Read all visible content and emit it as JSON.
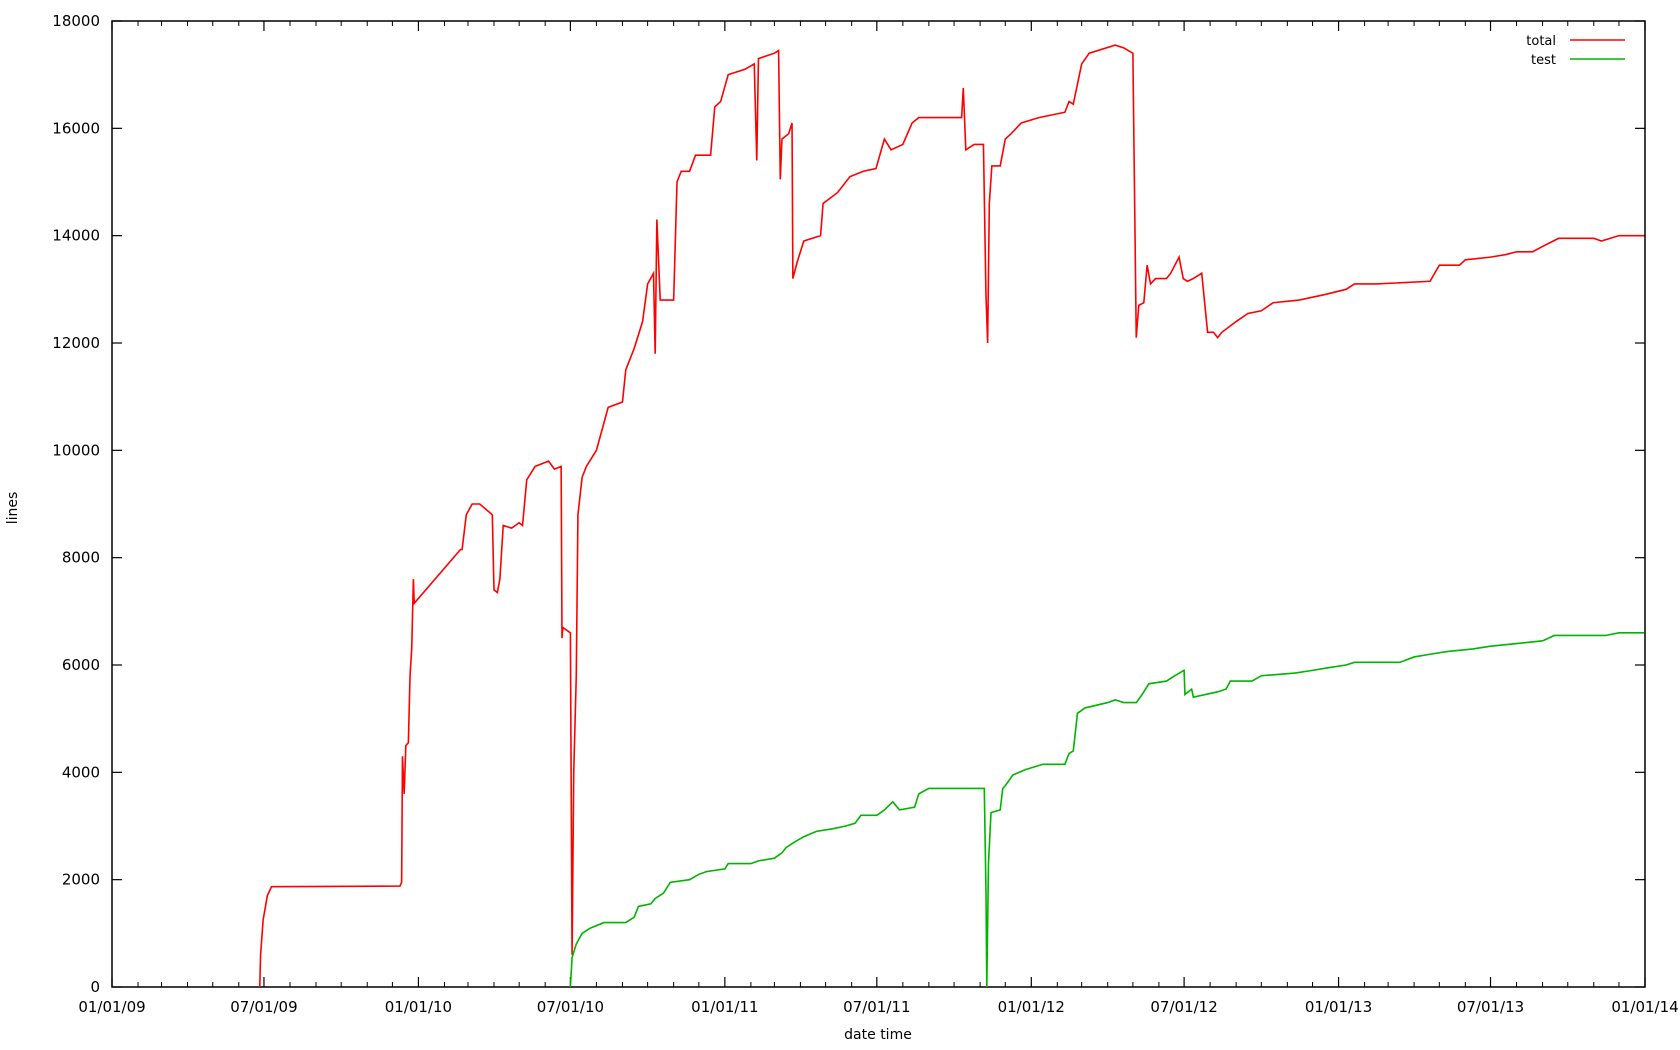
{
  "chart_data": {
    "type": "line",
    "title": "",
    "xlabel": "date time",
    "ylabel": "lines",
    "x_range": [
      "2009-01-01",
      "2014-01-01"
    ],
    "ylim": [
      0,
      18000
    ],
    "grid": false,
    "legend_position": "top-right",
    "x_ticks": [
      "2009-01-01",
      "2009-07-01",
      "2010-01-01",
      "2010-07-01",
      "2011-01-01",
      "2011-07-01",
      "2012-01-01",
      "2012-07-01",
      "2013-01-01",
      "2013-07-01",
      "2014-01-01"
    ],
    "x_tick_labels": [
      "01/01/09",
      "07/01/09",
      "01/01/10",
      "07/01/10",
      "01/01/11",
      "07/01/11",
      "01/01/12",
      "07/01/12",
      "01/01/13",
      "07/01/13",
      "01/01/14"
    ],
    "y_ticks": [
      0,
      2000,
      4000,
      6000,
      8000,
      10000,
      12000,
      14000,
      16000,
      18000
    ],
    "y_tick_labels": [
      "0",
      "2000",
      "4000",
      "6000",
      "8000",
      "10000",
      "12000",
      "14000",
      "16000",
      "18000"
    ],
    "series": [
      {
        "name": "total",
        "color": "#ff0000",
        "points": [
          [
            "2009-06-26",
            0
          ],
          [
            "2009-06-27",
            600
          ],
          [
            "2009-06-30",
            1250
          ],
          [
            "2009-07-05",
            1700
          ],
          [
            "2009-07-10",
            1870
          ],
          [
            "2009-12-10",
            1880
          ],
          [
            "2009-12-12",
            1950
          ],
          [
            "2009-12-13",
            4300
          ],
          [
            "2009-12-15",
            3600
          ],
          [
            "2009-12-17",
            4500
          ],
          [
            "2009-12-20",
            4550
          ],
          [
            "2009-12-22",
            5800
          ],
          [
            "2009-12-24",
            6300
          ],
          [
            "2009-12-26",
            7600
          ],
          [
            "2009-12-27",
            7150
          ],
          [
            "2010-02-20",
            8150
          ],
          [
            "2010-02-22",
            8150
          ],
          [
            "2010-02-27",
            8800
          ],
          [
            "2010-03-06",
            9000
          ],
          [
            "2010-03-15",
            9000
          ],
          [
            "2010-03-30",
            8800
          ],
          [
            "2010-04-01",
            7400
          ],
          [
            "2010-04-05",
            7350
          ],
          [
            "2010-04-08",
            7600
          ],
          [
            "2010-04-12",
            8600
          ],
          [
            "2010-04-22",
            8550
          ],
          [
            "2010-05-01",
            8650
          ],
          [
            "2010-05-05",
            8600
          ],
          [
            "2010-05-10",
            9450
          ],
          [
            "2010-05-20",
            9700
          ],
          [
            "2010-06-05",
            9800
          ],
          [
            "2010-06-12",
            9650
          ],
          [
            "2010-06-20",
            9700
          ],
          [
            "2010-06-21",
            6500
          ],
          [
            "2010-06-22",
            6700
          ],
          [
            "2010-07-01",
            6600
          ],
          [
            "2010-07-03",
            600
          ],
          [
            "2010-07-05",
            4000
          ],
          [
            "2010-07-08",
            5800
          ],
          [
            "2010-07-10",
            8800
          ],
          [
            "2010-07-15",
            9500
          ],
          [
            "2010-07-20",
            9700
          ],
          [
            "2010-08-01",
            10000
          ],
          [
            "2010-08-08",
            10400
          ],
          [
            "2010-08-15",
            10800
          ],
          [
            "2010-09-01",
            10900
          ],
          [
            "2010-09-05",
            11500
          ],
          [
            "2010-09-15",
            11900
          ],
          [
            "2010-09-25",
            12400
          ],
          [
            "2010-10-01",
            13100
          ],
          [
            "2010-10-08",
            13300
          ],
          [
            "2010-10-10",
            11800
          ],
          [
            "2010-10-12",
            14300
          ],
          [
            "2010-10-16",
            12800
          ],
          [
            "2010-11-01",
            12800
          ],
          [
            "2010-11-05",
            15000
          ],
          [
            "2010-11-10",
            15200
          ],
          [
            "2010-11-20",
            15200
          ],
          [
            "2010-11-27",
            15500
          ],
          [
            "2010-12-15",
            15500
          ],
          [
            "2010-12-20",
            16400
          ],
          [
            "2010-12-27",
            16500
          ],
          [
            "2011-01-05",
            17000
          ],
          [
            "2011-01-25",
            17100
          ],
          [
            "2011-02-05",
            17200
          ],
          [
            "2011-02-08",
            15400
          ],
          [
            "2011-02-10",
            17300
          ],
          [
            "2011-03-01",
            17400
          ],
          [
            "2011-03-06",
            17450
          ],
          [
            "2011-03-08",
            15050
          ],
          [
            "2011-03-10",
            15800
          ],
          [
            "2011-03-18",
            15900
          ],
          [
            "2011-03-22",
            16100
          ],
          [
            "2011-03-23",
            13200
          ],
          [
            "2011-03-28",
            13500
          ],
          [
            "2011-04-05",
            13900
          ],
          [
            "2011-04-25",
            14000
          ],
          [
            "2011-04-28",
            14600
          ],
          [
            "2011-05-15",
            14800
          ],
          [
            "2011-05-30",
            15100
          ],
          [
            "2011-06-15",
            15200
          ],
          [
            "2011-06-30",
            15250
          ],
          [
            "2011-07-10",
            15800
          ],
          [
            "2011-07-18",
            15600
          ],
          [
            "2011-08-01",
            15700
          ],
          [
            "2011-08-12",
            16100
          ],
          [
            "2011-08-20",
            16200
          ],
          [
            "2011-09-05",
            16200
          ],
          [
            "2011-10-10",
            16200
          ],
          [
            "2011-10-12",
            16750
          ],
          [
            "2011-10-15",
            15600
          ],
          [
            "2011-10-25",
            15700
          ],
          [
            "2011-11-05",
            15700
          ],
          [
            "2011-11-08",
            12900
          ],
          [
            "2011-11-10",
            12000
          ],
          [
            "2011-11-12",
            14600
          ],
          [
            "2011-11-15",
            15300
          ],
          [
            "2011-11-25",
            15300
          ],
          [
            "2011-12-01",
            15800
          ],
          [
            "2011-12-08",
            15900
          ],
          [
            "2011-12-20",
            16100
          ],
          [
            "2012-01-10",
            16200
          ],
          [
            "2012-02-10",
            16300
          ],
          [
            "2012-02-15",
            16500
          ],
          [
            "2012-02-20",
            16450
          ],
          [
            "2012-03-01",
            17200
          ],
          [
            "2012-03-10",
            17400
          ],
          [
            "2012-04-10",
            17550
          ],
          [
            "2012-04-20",
            17500
          ],
          [
            "2012-05-01",
            17400
          ],
          [
            "2012-05-05",
            12100
          ],
          [
            "2012-05-08",
            12700
          ],
          [
            "2012-05-14",
            12750
          ],
          [
            "2012-05-18",
            13450
          ],
          [
            "2012-05-22",
            13100
          ],
          [
            "2012-05-28",
            13200
          ],
          [
            "2012-06-10",
            13200
          ],
          [
            "2012-06-15",
            13300
          ],
          [
            "2012-06-25",
            13600
          ],
          [
            "2012-06-30",
            13200
          ],
          [
            "2012-07-05",
            13150
          ],
          [
            "2012-07-12",
            13200
          ],
          [
            "2012-07-22",
            13300
          ],
          [
            "2012-07-29",
            12200
          ],
          [
            "2012-08-05",
            12200
          ],
          [
            "2012-08-10",
            12100
          ],
          [
            "2012-08-15",
            12200
          ],
          [
            "2012-09-01",
            12400
          ],
          [
            "2012-09-15",
            12550
          ],
          [
            "2012-10-01",
            12600
          ],
          [
            "2012-10-15",
            12750
          ],
          [
            "2012-11-15",
            12800
          ],
          [
            "2012-12-15",
            12900
          ],
          [
            "2013-01-10",
            13000
          ],
          [
            "2013-01-20",
            13100
          ],
          [
            "2013-02-15",
            13100
          ],
          [
            "2013-04-20",
            13150
          ],
          [
            "2013-05-01",
            13450
          ],
          [
            "2013-05-25",
            13450
          ],
          [
            "2013-06-01",
            13550
          ],
          [
            "2013-07-01",
            13600
          ],
          [
            "2013-07-20",
            13650
          ],
          [
            "2013-08-01",
            13700
          ],
          [
            "2013-08-20",
            13700
          ],
          [
            "2013-09-01",
            13800
          ],
          [
            "2013-09-20",
            13950
          ],
          [
            "2013-10-10",
            13950
          ],
          [
            "2013-11-01",
            13950
          ],
          [
            "2013-11-10",
            13900
          ],
          [
            "2013-12-01",
            14000
          ],
          [
            "2013-12-31",
            14000
          ]
        ]
      },
      {
        "name": "test",
        "color": "#00b400",
        "points": [
          [
            "2010-07-01",
            0
          ],
          [
            "2010-07-03",
            550
          ],
          [
            "2010-07-08",
            800
          ],
          [
            "2010-07-15",
            1000
          ],
          [
            "2010-07-25",
            1100
          ],
          [
            "2010-08-10",
            1200
          ],
          [
            "2010-09-05",
            1200
          ],
          [
            "2010-09-15",
            1300
          ],
          [
            "2010-09-20",
            1500
          ],
          [
            "2010-10-05",
            1550
          ],
          [
            "2010-10-10",
            1650
          ],
          [
            "2010-10-20",
            1750
          ],
          [
            "2010-10-28",
            1950
          ],
          [
            "2010-11-20",
            2000
          ],
          [
            "2010-12-01",
            2100
          ],
          [
            "2010-12-10",
            2150
          ],
          [
            "2011-01-01",
            2200
          ],
          [
            "2011-01-05",
            2300
          ],
          [
            "2011-02-01",
            2300
          ],
          [
            "2011-02-10",
            2350
          ],
          [
            "2011-03-01",
            2400
          ],
          [
            "2011-03-10",
            2500
          ],
          [
            "2011-03-15",
            2600
          ],
          [
            "2011-03-25",
            2700
          ],
          [
            "2011-04-05",
            2800
          ],
          [
            "2011-04-20",
            2900
          ],
          [
            "2011-05-10",
            2950
          ],
          [
            "2011-05-25",
            3000
          ],
          [
            "2011-06-05",
            3050
          ],
          [
            "2011-06-12",
            3200
          ],
          [
            "2011-07-01",
            3200
          ],
          [
            "2011-07-10",
            3300
          ],
          [
            "2011-07-20",
            3450
          ],
          [
            "2011-07-28",
            3300
          ],
          [
            "2011-08-15",
            3350
          ],
          [
            "2011-08-20",
            3600
          ],
          [
            "2011-09-01",
            3700
          ],
          [
            "2011-10-01",
            3700
          ],
          [
            "2011-11-06",
            3700
          ],
          [
            "2011-11-08",
            1800
          ],
          [
            "2011-11-09",
            0
          ],
          [
            "2011-11-11",
            2300
          ],
          [
            "2011-11-14",
            3250
          ],
          [
            "2011-11-25",
            3300
          ],
          [
            "2011-11-28",
            3700
          ],
          [
            "2011-12-01",
            3750
          ],
          [
            "2011-12-10",
            3950
          ],
          [
            "2011-12-25",
            4050
          ],
          [
            "2012-01-15",
            4150
          ],
          [
            "2012-02-10",
            4150
          ],
          [
            "2012-02-15",
            4350
          ],
          [
            "2012-02-20",
            4400
          ],
          [
            "2012-02-25",
            5100
          ],
          [
            "2012-03-05",
            5200
          ],
          [
            "2012-04-01",
            5300
          ],
          [
            "2012-04-10",
            5350
          ],
          [
            "2012-04-20",
            5300
          ],
          [
            "2012-05-05",
            5300
          ],
          [
            "2012-05-12",
            5450
          ],
          [
            "2012-05-20",
            5650
          ],
          [
            "2012-06-10",
            5700
          ],
          [
            "2012-06-20",
            5800
          ],
          [
            "2012-07-01",
            5900
          ],
          [
            "2012-07-02",
            5450
          ],
          [
            "2012-07-10",
            5550
          ],
          [
            "2012-07-12",
            5400
          ],
          [
            "2012-08-10",
            5500
          ],
          [
            "2012-08-20",
            5550
          ],
          [
            "2012-08-25",
            5700
          ],
          [
            "2012-09-20",
            5700
          ],
          [
            "2012-10-01",
            5800
          ],
          [
            "2012-11-10",
            5850
          ],
          [
            "2012-12-01",
            5900
          ],
          [
            "2012-12-20",
            5950
          ],
          [
            "2013-01-10",
            6000
          ],
          [
            "2013-01-20",
            6050
          ],
          [
            "2013-03-15",
            6050
          ],
          [
            "2013-04-01",
            6150
          ],
          [
            "2013-04-20",
            6200
          ],
          [
            "2013-05-10",
            6250
          ],
          [
            "2013-06-10",
            6300
          ],
          [
            "2013-07-01",
            6350
          ],
          [
            "2013-08-01",
            6400
          ],
          [
            "2013-09-01",
            6450
          ],
          [
            "2013-09-15",
            6550
          ],
          [
            "2013-10-15",
            6550
          ],
          [
            "2013-11-15",
            6550
          ],
          [
            "2013-12-01",
            6600
          ],
          [
            "2013-12-31",
            6600
          ]
        ]
      }
    ]
  }
}
